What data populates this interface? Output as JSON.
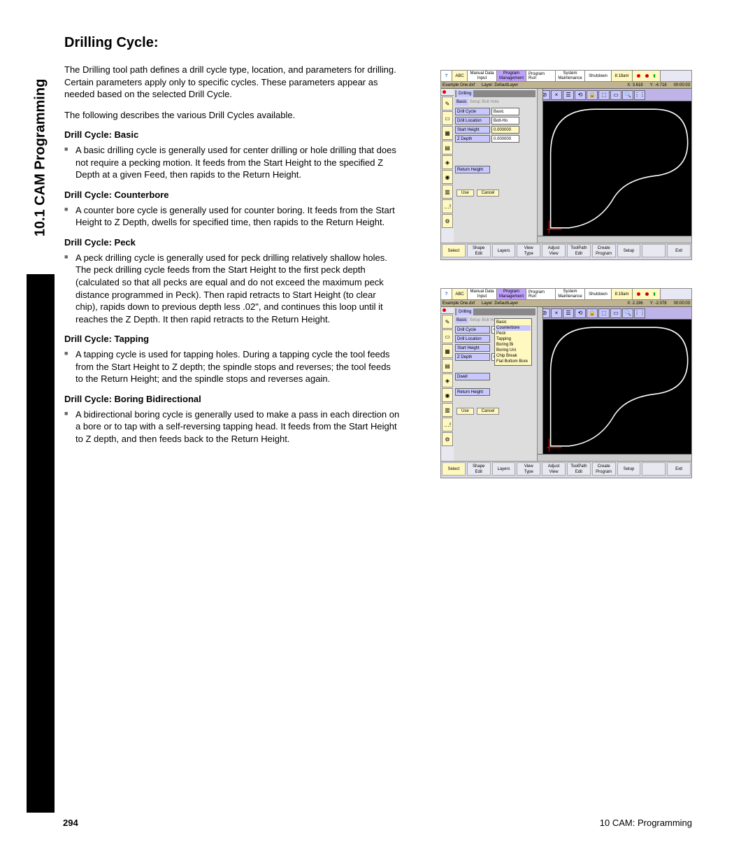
{
  "side_tab": "10.1 CAM Programming",
  "title": "Drilling Cycle:",
  "intro1": "The Drilling tool path defines a drill cycle type, location, and parameters for drilling. Certain parameters apply only to specific cycles. These parameters appear as needed based on the selected Drill Cycle.",
  "intro2": "The following describes the various Drill Cycles available.",
  "sections": [
    {
      "h": "Drill Cycle: Basic",
      "b": "A basic drilling cycle is generally used for center drilling or hole drilling that does not require a pecking motion. It feeds from the Start Height to the specified Z Depth at a given Feed, then rapids to the Return Height."
    },
    {
      "h": "Drill Cycle: Counterbore",
      "b": "A counter bore cycle is generally used for counter boring. It feeds from the Start Height to Z Depth, dwells for specified time, then rapids to the Return Height."
    },
    {
      "h": "Drill Cycle: Peck",
      "b": "A peck drilling cycle is generally used for peck drilling relatively shallow holes. The peck drilling cycle feeds from the Start Height to the first peck depth (calculated so that all pecks are equal and do not exceed the maximum peck distance programmed in Peck). Then rapid retracts to Start Height (to clear chip), rapids down to previous depth less .02\", and continues this loop until it reaches the Z Depth. It then rapid retracts to the Return Height."
    },
    {
      "h": "Drill Cycle: Tapping",
      "b": "A tapping cycle is used for tapping holes. During a tapping cycle the tool feeds from the Start Height to Z depth; the spindle stops and reverses; the tool feeds to the Return Height; and the spindle stops and reverses again."
    },
    {
      "h": "Drill Cycle: Boring Bidirectional",
      "b": "A bidirectional boring cycle is generally used to make a pass in each direction on a bore or to tap with a self-reversing tapping head. It feeds from the Start Height to Z depth, and then feeds back to the Return Height."
    }
  ],
  "footer": {
    "page": "294",
    "label": "10 CAM: Programming"
  },
  "shot": {
    "colors": {
      "bg": "#000",
      "curve": "#fff",
      "marker": "#ff3030",
      "accent": "#ffff40",
      "panel_lbl": "#c8c8ff",
      "top_accent": "#bfb4e8"
    },
    "topmenu": {
      "q": "?",
      "abc": "ABC",
      "man": "Manual Data\nInput",
      "prog": "Program\nManagement",
      "run": "Program Run",
      "sys": "System\nMaintenance",
      "shut": "Shutdown"
    },
    "time1": "8:18am",
    "time2": "8:19am",
    "status1": {
      "file": "Example One.dxf",
      "layer": "Layer: DefaultLayer",
      "x": "X: 3.618",
      "y": "Y: -4.718",
      "t": "00:00:03"
    },
    "status2": {
      "file": "Example One.dxf",
      "layer": "Layer: DefaultLayer",
      "x": "X: 2.196",
      "y": "Y: -2.078",
      "t": "00:00:03"
    },
    "title": "Drilling",
    "tabs": [
      "Basic",
      "Setup",
      "Bolt Hole"
    ],
    "panel1": {
      "drill_cycle_lbl": "Drill Cycle",
      "drill_cycle_val": "Basic",
      "drill_loc_lbl": "Drill Location",
      "drill_loc_val": "Bolt-Ho",
      "start_h_lbl": "Start Height",
      "start_h_val": "0.000000",
      "zdepth_lbl": "Z Depth",
      "zdepth_val": "0.000000",
      "return_lbl": "Return Height",
      "use": "Use",
      "cancel": "Cancel"
    },
    "panel2": {
      "drill_cycle_lbl": "Drill Cycle",
      "drill_cycle_val": "Counter",
      "drill_loc_lbl": "Drill Location",
      "start_h_lbl": "Start Height",
      "zdepth_lbl": "Z Depth",
      "zdepth_val": "0.000000",
      "dwell_lbl": "Dwell",
      "return_lbl": "Return Height",
      "use": "Use",
      "cancel": "Cancel",
      "dropdown": [
        "Basic",
        "Counterbore",
        "Peck",
        "Tapping",
        "Boring Bi",
        "Boring Uni",
        "Chip Break",
        "Flat Bottom Bore"
      ],
      "dropdown_sel": 1
    },
    "bottombar": [
      "Select",
      "Shape\nEdit",
      "Layers",
      "View\nType",
      "Adjust\nView",
      "ToolPath\nEdit",
      "Create\nProgram",
      "Setup",
      "",
      "Exit"
    ],
    "left_icons": [
      "✎",
      "▭",
      "▦",
      "▤",
      "◈",
      "◉",
      "▥",
      "…!",
      "⚙"
    ],
    "icon_row": [
      "⊘",
      "×",
      "☰",
      "⟲",
      "🔒",
      "⬚",
      "▭",
      "🔍",
      "⋮⋮"
    ]
  }
}
